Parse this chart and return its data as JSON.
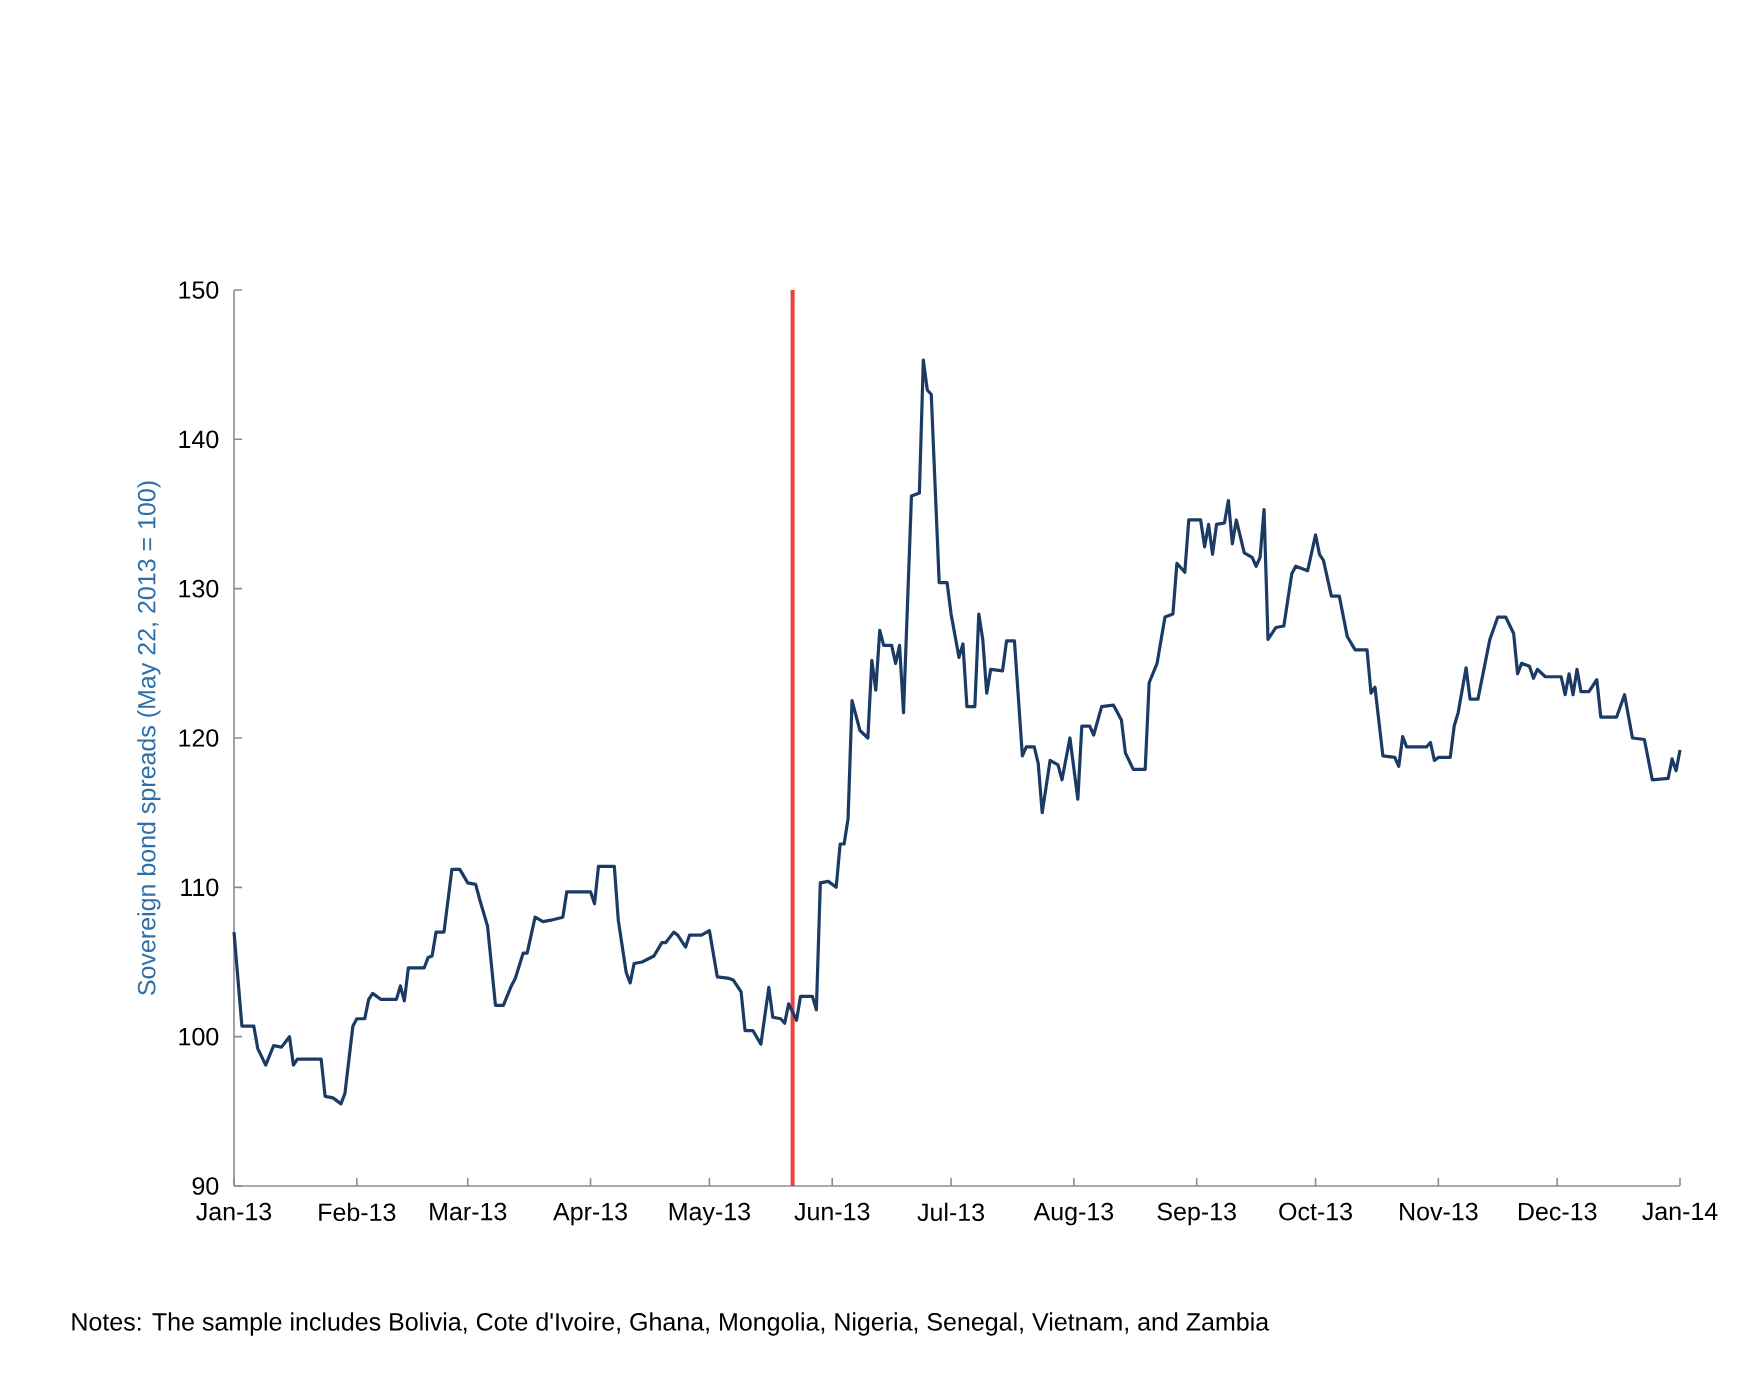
{
  "chart_data": {
    "type": "line",
    "ylabel": "Sovereign bond spreads (May 22, 2013 = 100)",
    "annotations": [
      "Notes: The sample includes Bolivia, Cote d'Ivoire, Ghana, Mongolia, Nigeria, Senegal, Vietnam, and Zambia"
    ],
    "xlim": [
      "2013-01-01",
      "2014-01-01"
    ],
    "ylim": [
      90,
      150
    ],
    "yticks": [
      90,
      100,
      110,
      120,
      130,
      140,
      150
    ],
    "xticks": [
      {
        "value": "2013-01-01",
        "label": "Jan-13"
      },
      {
        "value": "2013-02-01",
        "label": "Feb-13"
      },
      {
        "value": "2013-03-01",
        "label": "Mar-13"
      },
      {
        "value": "2013-04-01",
        "label": "Apr-13"
      },
      {
        "value": "2013-05-01",
        "label": "May-13"
      },
      {
        "value": "2013-06-01",
        "label": "Jun-13"
      },
      {
        "value": "2013-07-01",
        "label": "Jul-13"
      },
      {
        "value": "2013-08-01",
        "label": "Aug-13"
      },
      {
        "value": "2013-09-01",
        "label": "Sep-13"
      },
      {
        "value": "2013-10-01",
        "label": "Oct-13"
      },
      {
        "value": "2013-11-01",
        "label": "Nov-13"
      },
      {
        "value": "2013-12-01",
        "label": "Dec-13"
      },
      {
        "value": "2014-01-01",
        "label": "Jan-14"
      }
    ],
    "ref_lines": [
      {
        "axis": "x",
        "value": "2013-05-22",
        "color": "#e8423a"
      }
    ],
    "grid": false,
    "marker": "none",
    "line_style": "solid",
    "series": [
      {
        "color": "#1b3b64",
        "x": [
          "2013-01-01",
          "2013-01-03",
          "2013-01-06",
          "2013-01-07",
          "2013-01-09",
          "2013-01-11",
          "2013-01-13",
          "2013-01-15",
          "2013-01-16",
          "2013-01-17",
          "2013-01-23",
          "2013-01-24",
          "2013-01-26",
          "2013-01-28",
          "2013-01-29",
          "2013-01-31",
          "2013-02-01",
          "2013-02-03",
          "2013-02-04",
          "2013-02-05",
          "2013-02-07",
          "2013-02-11",
          "2013-02-12",
          "2013-02-13",
          "2013-02-14",
          "2013-02-18",
          "2013-02-19",
          "2013-02-20",
          "2013-02-21",
          "2013-02-23",
          "2013-02-25",
          "2013-02-27",
          "2013-03-01",
          "2013-03-03",
          "2013-03-04",
          "2013-03-06",
          "2013-03-08",
          "2013-03-10",
          "2013-03-12",
          "2013-03-13",
          "2013-03-15",
          "2013-03-16",
          "2013-03-18",
          "2013-03-20",
          "2013-03-22",
          "2013-03-25",
          "2013-03-26",
          "2013-04-01",
          "2013-04-02",
          "2013-04-03",
          "2013-04-07",
          "2013-04-08",
          "2013-04-10",
          "2013-04-11",
          "2013-04-12",
          "2013-04-14",
          "2013-04-17",
          "2013-04-19",
          "2013-04-20",
          "2013-04-22",
          "2013-04-23",
          "2013-04-25",
          "2013-04-26",
          "2013-04-29",
          "2013-05-01",
          "2013-05-03",
          "2013-05-06",
          "2013-05-07",
          "2013-05-09",
          "2013-05-10",
          "2013-05-12",
          "2013-05-14",
          "2013-05-16",
          "2013-05-17",
          "2013-05-19",
          "2013-05-20",
          "2013-05-21",
          "2013-05-23",
          "2013-05-24",
          "2013-05-27",
          "2013-05-28",
          "2013-05-29",
          "2013-05-31",
          "2013-06-02",
          "2013-06-03",
          "2013-06-04",
          "2013-06-05",
          "2013-06-06",
          "2013-06-08",
          "2013-06-10",
          "2013-06-11",
          "2013-06-12",
          "2013-06-13",
          "2013-06-14",
          "2013-06-16",
          "2013-06-17",
          "2013-06-18",
          "2013-06-19",
          "2013-06-21",
          "2013-06-23",
          "2013-06-24",
          "2013-06-25",
          "2013-06-26",
          "2013-06-28",
          "2013-06-30",
          "2013-07-01",
          "2013-07-03",
          "2013-07-04",
          "2013-07-05",
          "2013-07-07",
          "2013-07-08",
          "2013-07-09",
          "2013-07-10",
          "2013-07-11",
          "2013-07-14",
          "2013-07-15",
          "2013-07-17",
          "2013-07-19",
          "2013-07-20",
          "2013-07-22",
          "2013-07-23",
          "2013-07-24",
          "2013-07-26",
          "2013-07-28",
          "2013-07-29",
          "2013-07-31",
          "2013-08-02",
          "2013-08-03",
          "2013-08-05",
          "2013-08-06",
          "2013-08-08",
          "2013-08-11",
          "2013-08-13",
          "2013-08-14",
          "2013-08-16",
          "2013-08-19",
          "2013-08-20",
          "2013-08-22",
          "2013-08-24",
          "2013-08-26",
          "2013-08-27",
          "2013-08-29",
          "2013-08-30",
          "2013-09-02",
          "2013-09-03",
          "2013-09-04",
          "2013-09-05",
          "2013-09-06",
          "2013-09-08",
          "2013-09-09",
          "2013-09-10",
          "2013-09-11",
          "2013-09-13",
          "2013-09-15",
          "2013-09-16",
          "2013-09-17",
          "2013-09-18",
          "2013-09-19",
          "2013-09-21",
          "2013-09-23",
          "2013-09-25",
          "2013-09-26",
          "2013-09-29",
          "2013-10-01",
          "2013-10-02",
          "2013-10-03",
          "2013-10-05",
          "2013-10-07",
          "2013-10-09",
          "2013-10-11",
          "2013-10-14",
          "2013-10-15",
          "2013-10-16",
          "2013-10-18",
          "2013-10-21",
          "2013-10-22",
          "2013-10-23",
          "2013-10-24",
          "2013-10-29",
          "2013-10-30",
          "2013-10-31",
          "2013-11-01",
          "2013-11-04",
          "2013-11-05",
          "2013-11-06",
          "2013-11-08",
          "2013-11-09",
          "2013-11-11",
          "2013-11-14",
          "2013-11-16",
          "2013-11-18",
          "2013-11-20",
          "2013-11-21",
          "2013-11-22",
          "2013-11-24",
          "2013-11-25",
          "2013-11-26",
          "2013-11-28",
          "2013-12-02",
          "2013-12-03",
          "2013-12-04",
          "2013-12-05",
          "2013-12-06",
          "2013-12-07",
          "2013-12-09",
          "2013-12-11",
          "2013-12-12",
          "2013-12-16",
          "2013-12-18",
          "2013-12-20",
          "2013-12-23",
          "2013-12-25",
          "2013-12-29",
          "2013-12-30",
          "2013-12-31",
          "2014-01-01"
        ],
        "values": [
          107.0,
          100.7,
          100.7,
          99.2,
          98.1,
          99.4,
          99.3,
          100.0,
          98.1,
          98.5,
          98.5,
          96.0,
          95.9,
          95.5,
          96.2,
          100.7,
          101.2,
          101.2,
          102.5,
          102.9,
          102.5,
          102.5,
          103.4,
          102.4,
          104.6,
          104.6,
          105.3,
          105.4,
          107.0,
          107.0,
          111.2,
          111.2,
          110.3,
          110.2,
          109.2,
          107.4,
          102.1,
          102.1,
          103.4,
          103.9,
          105.6,
          105.6,
          108.0,
          107.7,
          107.8,
          108.0,
          109.7,
          109.7,
          108.9,
          111.4,
          111.4,
          107.8,
          104.3,
          103.6,
          104.9,
          105.0,
          105.4,
          106.3,
          106.3,
          107.0,
          106.8,
          106.0,
          106.8,
          106.8,
          107.1,
          104.0,
          103.9,
          103.8,
          103.0,
          100.4,
          100.4,
          99.5,
          103.3,
          101.3,
          101.2,
          100.9,
          102.2,
          101.1,
          102.7,
          102.7,
          101.8,
          110.3,
          110.4,
          110.0,
          112.9,
          112.9,
          114.6,
          122.5,
          120.5,
          120.0,
          125.2,
          123.2,
          127.2,
          126.2,
          126.2,
          125.0,
          126.2,
          121.7,
          136.2,
          136.4,
          145.3,
          143.3,
          143.0,
          130.4,
          130.4,
          128.3,
          125.4,
          126.3,
          122.1,
          122.1,
          128.3,
          126.6,
          123.0,
          124.6,
          124.5,
          126.5,
          126.5,
          118.8,
          119.4,
          119.4,
          118.3,
          115.0,
          118.5,
          118.2,
          117.2,
          120.0,
          115.9,
          120.8,
          120.8,
          120.2,
          122.1,
          122.2,
          121.2,
          119.0,
          117.9,
          117.9,
          123.7,
          125.0,
          128.1,
          128.3,
          131.7,
          131.1,
          134.6,
          134.6,
          132.8,
          134.3,
          132.3,
          134.3,
          134.4,
          135.9,
          133.0,
          134.6,
          132.4,
          132.1,
          131.5,
          132.1,
          135.3,
          126.6,
          127.4,
          127.5,
          131.0,
          131.5,
          131.2,
          133.6,
          132.3,
          131.9,
          129.5,
          129.5,
          126.8,
          125.9,
          125.9,
          123.0,
          123.4,
          118.8,
          118.7,
          118.1,
          120.1,
          119.4,
          119.4,
          119.7,
          118.5,
          118.7,
          118.7,
          120.8,
          121.7,
          124.7,
          122.6,
          122.6,
          126.6,
          128.1,
          128.1,
          127.0,
          124.3,
          125.0,
          124.8,
          124.0,
          124.6,
          124.1,
          124.1,
          122.9,
          124.3,
          122.9,
          124.6,
          123.1,
          123.1,
          123.9,
          121.4,
          121.4,
          122.9,
          120.0,
          119.9,
          117.2,
          117.3,
          118.6,
          117.8,
          119.2
        ]
      }
    ]
  }
}
